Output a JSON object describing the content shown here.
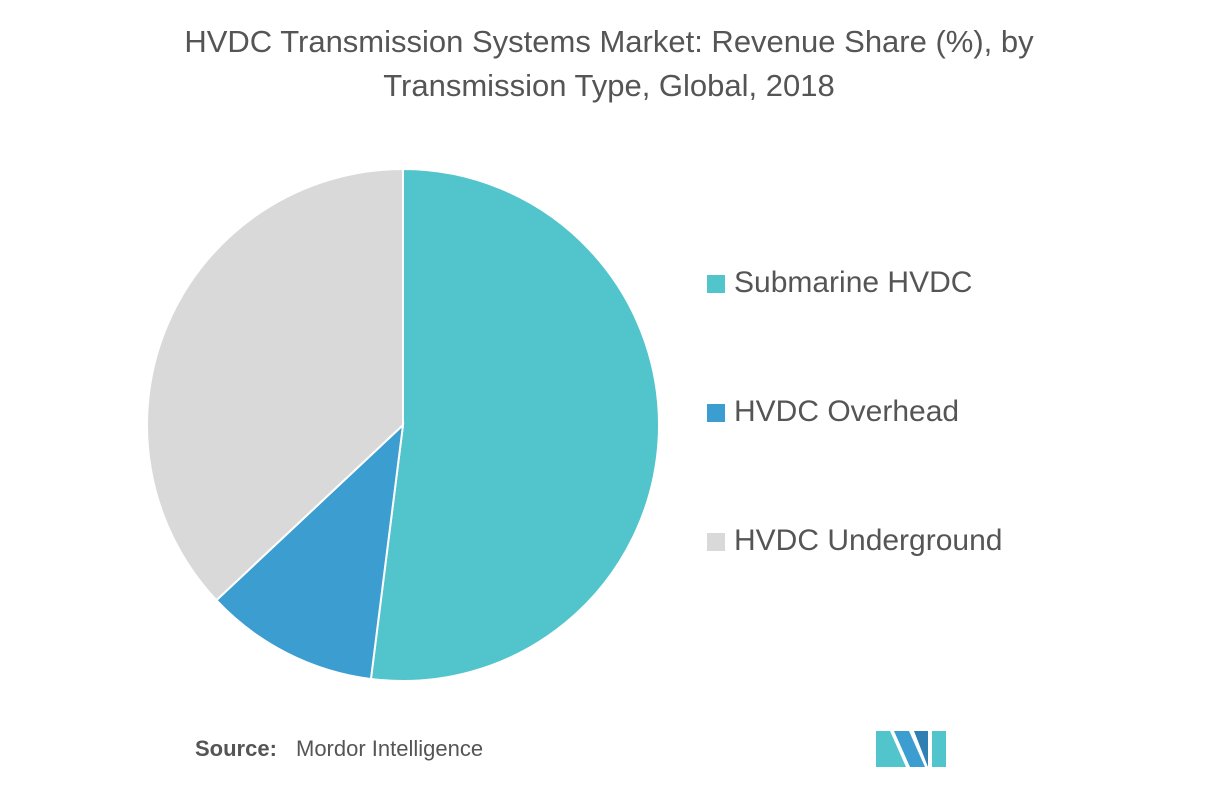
{
  "chart_data": {
    "type": "pie",
    "title": "HVDC Transmission Systems Market: Revenue Share (%), by Transmission Type, Global, 2018",
    "categories": [
      "Submarine HVDC",
      "HVDC Overhead",
      "HVDC Underground"
    ],
    "values": [
      52,
      11,
      37
    ],
    "colors": [
      "#52c4cb",
      "#3b9dd0",
      "#d9d9d9"
    ],
    "source_label": "Source:",
    "source": "Mordor Intelligence"
  }
}
